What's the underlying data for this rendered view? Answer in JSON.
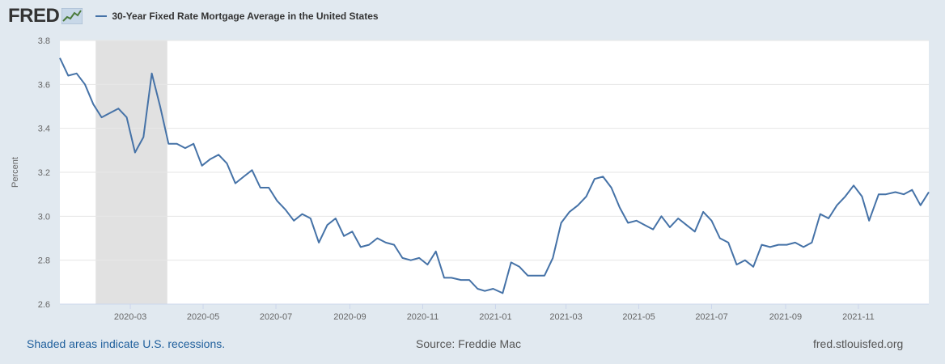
{
  "header": {
    "logo_text": "FRED",
    "legend_label": "30-Year Fixed Rate Mortgage Average in the United States"
  },
  "footer": {
    "recession_note": "Shaded areas indicate U.S. recessions.",
    "source": "Source: Freddie Mac",
    "site": "fred.stlouisfed.org"
  },
  "colors": {
    "line": "#4572a7",
    "recession": "#e1e1e1",
    "page_bg": "#e1e9f0"
  },
  "chart_data": {
    "type": "line",
    "title": "30-Year Fixed Rate Mortgage Average in the United States",
    "xlabel": "",
    "ylabel": "Percent",
    "ylim": [
      2.6,
      3.8
    ],
    "y_ticks": [
      "2.6",
      "2.8",
      "3.0",
      "3.2",
      "3.4",
      "3.6",
      "3.8"
    ],
    "x_start": "2020-01-02",
    "x_end": "2021-12-30",
    "x_ticks": [
      "2020-03",
      "2020-05",
      "2020-07",
      "2020-09",
      "2020-11",
      "2021-01",
      "2021-03",
      "2021-05",
      "2021-07",
      "2021-09",
      "2021-11"
    ],
    "grid": true,
    "recession": [
      "2020-02",
      "2020-04"
    ],
    "series": [
      {
        "name": "30-Year Fixed Rate Mortgage Average in the United States",
        "dates": [
          "2020-01-02",
          "2020-01-09",
          "2020-01-16",
          "2020-01-23",
          "2020-01-30",
          "2020-02-06",
          "2020-02-13",
          "2020-02-20",
          "2020-02-27",
          "2020-03-05",
          "2020-03-12",
          "2020-03-19",
          "2020-03-26",
          "2020-04-02",
          "2020-04-09",
          "2020-04-16",
          "2020-04-23",
          "2020-04-30",
          "2020-05-07",
          "2020-05-14",
          "2020-05-21",
          "2020-05-28",
          "2020-06-04",
          "2020-06-11",
          "2020-06-18",
          "2020-06-25",
          "2020-07-02",
          "2020-07-09",
          "2020-07-16",
          "2020-07-23",
          "2020-07-30",
          "2020-08-06",
          "2020-08-13",
          "2020-08-20",
          "2020-08-27",
          "2020-09-03",
          "2020-09-10",
          "2020-09-17",
          "2020-09-24",
          "2020-10-01",
          "2020-10-08",
          "2020-10-15",
          "2020-10-22",
          "2020-10-29",
          "2020-11-05",
          "2020-11-12",
          "2020-11-19",
          "2020-11-25",
          "2020-12-03",
          "2020-12-10",
          "2020-12-17",
          "2020-12-23",
          "2020-12-30",
          "2021-01-07",
          "2021-01-14",
          "2021-01-21",
          "2021-01-28",
          "2021-02-04",
          "2021-02-11",
          "2021-02-18",
          "2021-02-25",
          "2021-03-04",
          "2021-03-11",
          "2021-03-18",
          "2021-03-25",
          "2021-04-01",
          "2021-04-08",
          "2021-04-15",
          "2021-04-22",
          "2021-04-29",
          "2021-05-06",
          "2021-05-13",
          "2021-05-20",
          "2021-05-27",
          "2021-06-03",
          "2021-06-10",
          "2021-06-17",
          "2021-06-24",
          "2021-07-01",
          "2021-07-08",
          "2021-07-15",
          "2021-07-22",
          "2021-07-29",
          "2021-08-05",
          "2021-08-12",
          "2021-08-19",
          "2021-08-26",
          "2021-09-02",
          "2021-09-09",
          "2021-09-16",
          "2021-09-23",
          "2021-09-30",
          "2021-10-07",
          "2021-10-14",
          "2021-10-21",
          "2021-10-28",
          "2021-11-04",
          "2021-11-10",
          "2021-11-18",
          "2021-11-24",
          "2021-12-02",
          "2021-12-09",
          "2021-12-16",
          "2021-12-23",
          "2021-12-30"
        ],
        "values": [
          3.72,
          3.64,
          3.65,
          3.6,
          3.51,
          3.45,
          3.47,
          3.49,
          3.45,
          3.29,
          3.36,
          3.65,
          3.5,
          3.33,
          3.33,
          3.31,
          3.33,
          3.23,
          3.26,
          3.28,
          3.24,
          3.15,
          3.18,
          3.21,
          3.13,
          3.13,
          3.07,
          3.03,
          2.98,
          3.01,
          2.99,
          2.88,
          2.96,
          2.99,
          2.91,
          2.93,
          2.86,
          2.87,
          2.9,
          2.88,
          2.87,
          2.81,
          2.8,
          2.81,
          2.78,
          2.84,
          2.72,
          2.72,
          2.71,
          2.71,
          2.67,
          2.66,
          2.67,
          2.65,
          2.79,
          2.77,
          2.73,
          2.73,
          2.73,
          2.81,
          2.97,
          3.02,
          3.05,
          3.09,
          3.17,
          3.18,
          3.13,
          3.04,
          2.97,
          2.98,
          2.96,
          2.94,
          3.0,
          2.95,
          2.99,
          2.96,
          2.93,
          3.02,
          2.98,
          2.9,
          2.88,
          2.78,
          2.8,
          2.77,
          2.87,
          2.86,
          2.87,
          2.87,
          2.88,
          2.86,
          2.88,
          3.01,
          2.99,
          3.05,
          3.09,
          3.14,
          3.09,
          2.98,
          3.1,
          3.1,
          3.11,
          3.1,
          3.12,
          3.05,
          3.11
        ]
      }
    ]
  }
}
